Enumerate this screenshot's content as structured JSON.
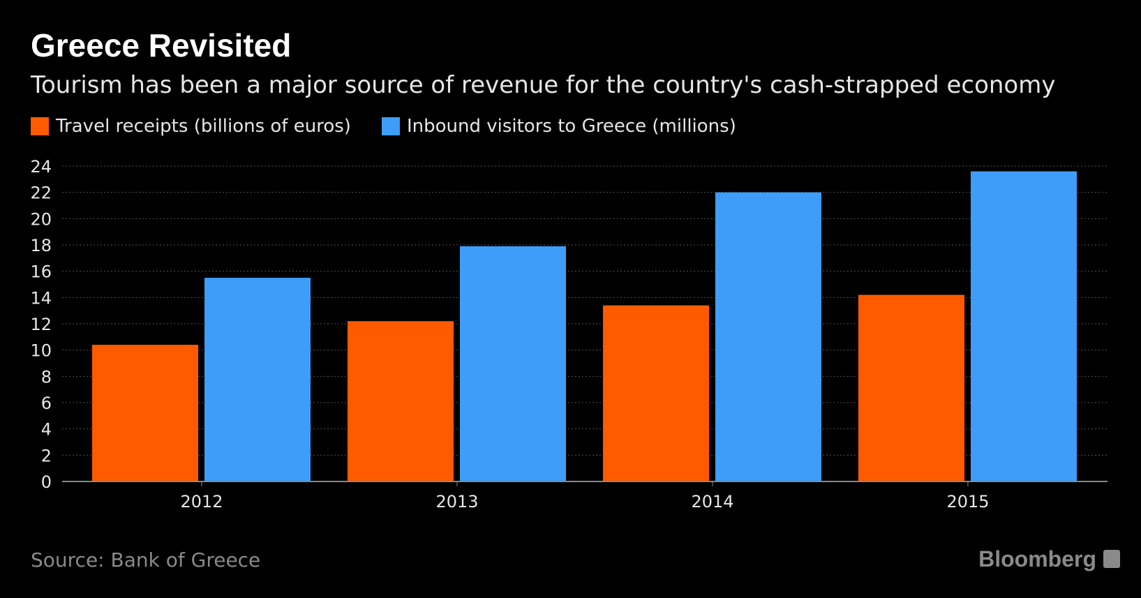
{
  "chart_data": {
    "type": "bar",
    "title": "Greece Revisited",
    "subtitle": "Tourism has been a major source of revenue for the country's cash-strapped economy",
    "categories": [
      "2012",
      "2013",
      "2014",
      "2015"
    ],
    "series": [
      {
        "name": "Travel receipts (billions of euros)",
        "color": "#ff5a00",
        "values": [
          10.4,
          12.2,
          13.4,
          14.2
        ]
      },
      {
        "name": "Inbound visitors to Greece (millions)",
        "color": "#3d9df9",
        "values": [
          15.5,
          17.9,
          22.0,
          23.6
        ]
      }
    ],
    "ylim": [
      0,
      24
    ],
    "yticks": [
      "0",
      "2",
      "4",
      "6",
      "8",
      "10",
      "12",
      "14",
      "16",
      "18",
      "20",
      "22",
      "24"
    ],
    "grid": true,
    "legend_placement": "top-left",
    "source": "Source: Bank of Greece",
    "brand": "Bloomberg"
  }
}
